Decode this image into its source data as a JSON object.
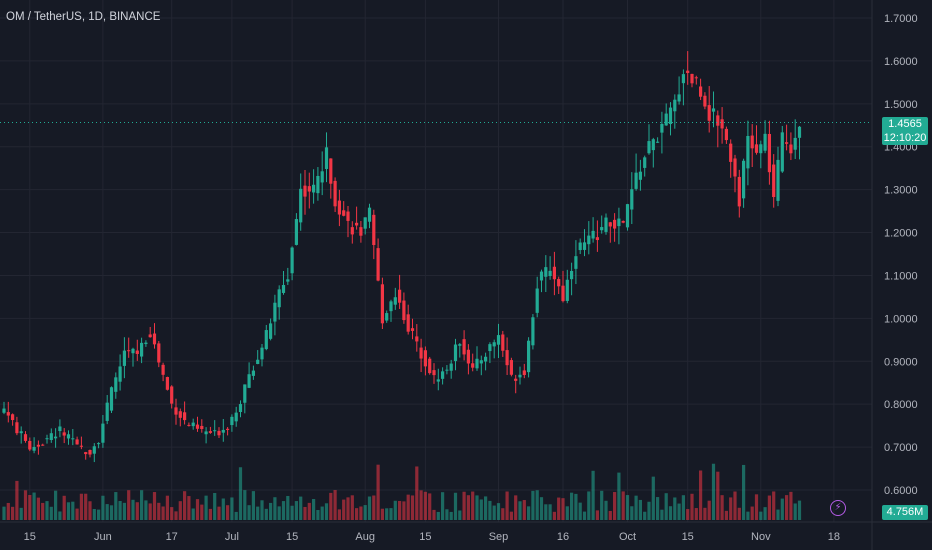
{
  "header": {
    "symbol": "OM / TetherUS, 1D, BINANCE"
  },
  "price_axis": {
    "ticks": [
      "1.7000",
      "1.6000",
      "1.5000",
      "1.4000",
      "1.3000",
      "1.2000",
      "1.1000",
      "1.0000",
      "0.9000",
      "0.8000",
      "0.7000",
      "0.6000"
    ]
  },
  "time_axis": {
    "labels": [
      "15",
      "Jun",
      "17",
      "Jul",
      "15",
      "Aug",
      "15",
      "Sep",
      "16",
      "Oct",
      "15",
      "Nov",
      "18"
    ]
  },
  "last_price": {
    "value": "1.4565",
    "countdown": "12:10:20"
  },
  "volume_label": "4.756M",
  "colors": {
    "up": "#22AB94",
    "down": "#F23645",
    "bg": "#161A25",
    "grid": "#232632",
    "accent": "#B45BE6"
  },
  "chart_data": {
    "type": "candlestick",
    "title": "OM / TetherUS, 1D, BINANCE",
    "ylim": [
      0.565,
      1.73
    ],
    "x_range": [
      "2024-05-09",
      "2024-11-18"
    ],
    "close_anchors": [
      [
        "2024-05-09",
        0.79
      ],
      [
        "2024-05-12",
        0.74
      ],
      [
        "2024-05-15",
        0.7
      ],
      [
        "2024-05-18",
        0.71
      ],
      [
        "2024-05-22",
        0.74
      ],
      [
        "2024-05-26",
        0.7
      ],
      [
        "2024-05-29",
        0.69
      ],
      [
        "2024-05-31",
        0.72
      ],
      [
        "2024-06-03",
        0.83
      ],
      [
        "2024-06-06",
        0.92
      ],
      [
        "2024-06-09",
        0.92
      ],
      [
        "2024-06-12",
        0.97
      ],
      [
        "2024-06-14",
        0.9
      ],
      [
        "2024-06-17",
        0.8
      ],
      [
        "2024-06-20",
        0.76
      ],
      [
        "2024-06-23",
        0.74
      ],
      [
        "2024-06-27",
        0.73
      ],
      [
        "2024-06-30",
        0.75
      ],
      [
        "2024-07-03",
        0.81
      ],
      [
        "2024-07-06",
        0.89
      ],
      [
        "2024-07-09",
        0.96
      ],
      [
        "2024-07-12",
        1.06
      ],
      [
        "2024-07-14",
        1.1
      ],
      [
        "2024-07-17",
        1.3
      ],
      [
        "2024-07-20",
        1.3
      ],
      [
        "2024-07-23",
        1.38
      ],
      [
        "2024-07-25",
        1.28
      ],
      [
        "2024-07-28",
        1.22
      ],
      [
        "2024-07-31",
        1.2
      ],
      [
        "2024-08-02",
        1.24
      ],
      [
        "2024-08-05",
        1.0
      ],
      [
        "2024-08-08",
        1.06
      ],
      [
        "2024-08-11",
        0.98
      ],
      [
        "2024-08-14",
        0.92
      ],
      [
        "2024-08-17",
        0.86
      ],
      [
        "2024-08-20",
        0.88
      ],
      [
        "2024-08-23",
        0.95
      ],
      [
        "2024-08-26",
        0.88
      ],
      [
        "2024-08-29",
        0.92
      ],
      [
        "2024-09-01",
        0.96
      ],
      [
        "2024-09-04",
        0.86
      ],
      [
        "2024-09-07",
        0.88
      ],
      [
        "2024-09-10",
        1.08
      ],
      [
        "2024-09-13",
        1.12
      ],
      [
        "2024-09-16",
        1.05
      ],
      [
        "2024-09-19",
        1.16
      ],
      [
        "2024-09-22",
        1.18
      ],
      [
        "2024-09-26",
        1.22
      ],
      [
        "2024-09-30",
        1.22
      ],
      [
        "2024-10-03",
        1.33
      ],
      [
        "2024-10-06",
        1.4
      ],
      [
        "2024-10-09",
        1.44
      ],
      [
        "2024-10-12",
        1.5
      ],
      [
        "2024-10-14",
        1.58
      ],
      [
        "2024-10-17",
        1.55
      ],
      [
        "2024-10-20",
        1.48
      ],
      [
        "2024-10-23",
        1.45
      ],
      [
        "2024-10-25",
        1.38
      ],
      [
        "2024-10-27",
        1.28
      ],
      [
        "2024-10-29",
        1.42
      ],
      [
        "2024-10-31",
        1.38
      ],
      [
        "2024-11-02",
        1.42
      ],
      [
        "2024-11-04",
        1.28
      ],
      [
        "2024-11-06",
        1.42
      ],
      [
        "2024-11-08",
        1.4
      ],
      [
        "2024-11-10",
        1.46
      ]
    ],
    "last_price": 1.4565,
    "last_volume": "4.756M"
  }
}
